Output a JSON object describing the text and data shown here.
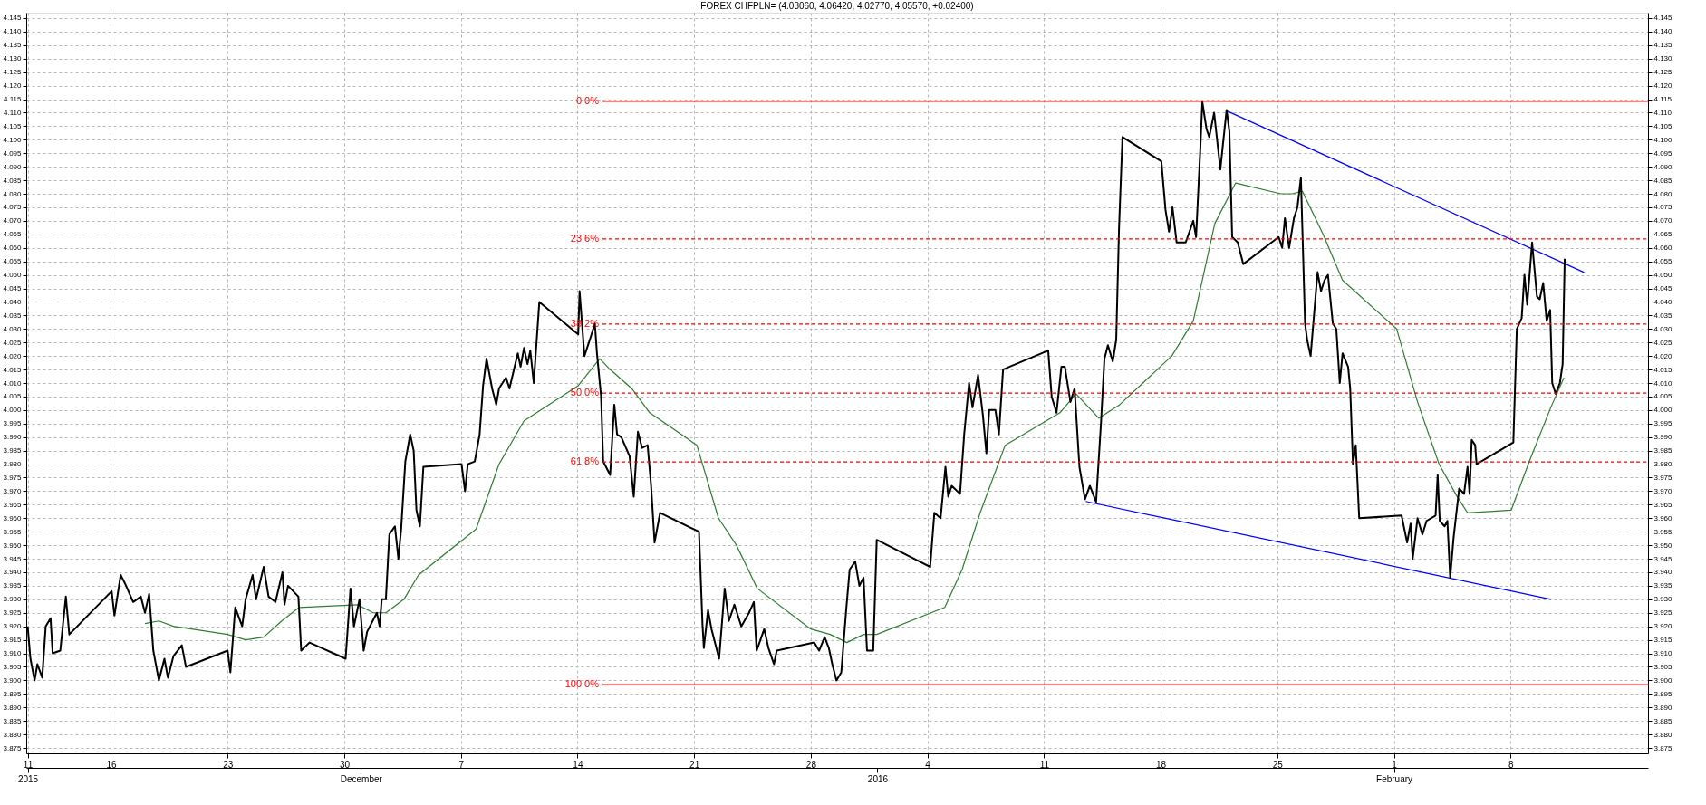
{
  "chart_data": {
    "type": "line",
    "title": "FOREX CHFPLN= (4.03060, 4.06420, 4.02770, 4.05570, +0.02400)",
    "xlim": [
      "2015-11-10T22:00",
      "2016-02-16T06:00"
    ],
    "xticks": [
      {
        "value": "2015-11-11",
        "label": "11"
      },
      {
        "value": "2015-11-16",
        "label": "16"
      },
      {
        "value": "2015-11-23",
        "label": "23"
      },
      {
        "value": "2015-11-30",
        "label": "30"
      },
      {
        "value": "2015-12-07",
        "label": "7"
      },
      {
        "value": "2015-12-14",
        "label": "14"
      },
      {
        "value": "2015-12-21",
        "label": "21"
      },
      {
        "value": "2015-12-28",
        "label": "28"
      },
      {
        "value": "2016-01-04",
        "label": "4"
      },
      {
        "value": "2016-01-11",
        "label": "11"
      },
      {
        "value": "2016-01-18",
        "label": "18"
      },
      {
        "value": "2016-01-25",
        "label": "25"
      },
      {
        "value": "2016-02-01",
        "label": "1"
      },
      {
        "value": "2016-02-08",
        "label": "8"
      }
    ],
    "x2lim": [
      "2015-11-10T22:00",
      "2016-02-16T06:00"
    ],
    "x2ticks": [
      {
        "value": "2015-11-11",
        "label": "2015"
      },
      {
        "value": "2015-12-01",
        "label": "December"
      },
      {
        "value": "2016-01-01",
        "label": "2016"
      },
      {
        "value": "2016-02-01",
        "label": "February"
      }
    ],
    "ylim": [
      3.873,
      4.147
    ],
    "yticks": [
      3.875,
      {
        "value": 3.88,
        "label": "3.880"
      },
      3.885,
      {
        "value": 3.89,
        "label": "3.890"
      },
      3.895,
      {
        "value": 3.9,
        "label": "3.900"
      },
      3.905,
      {
        "value": 3.91,
        "label": "3.910"
      },
      3.915,
      {
        "value": 3.92,
        "label": "3.920"
      },
      3.925,
      {
        "value": 3.93,
        "label": "3.930"
      },
      3.935,
      {
        "value": 3.94,
        "label": "3.940"
      },
      3.945,
      {
        "value": 3.95,
        "label": "3.950"
      },
      3.955,
      {
        "value": 3.96,
        "label": "3.960"
      },
      3.965,
      {
        "value": 3.97,
        "label": "3.970"
      },
      3.975,
      {
        "value": 3.98,
        "label": "3.980"
      },
      3.985,
      {
        "value": 3.99,
        "label": "3.990"
      },
      3.995,
      {
        "value": 4.0,
        "label": "4.000"
      },
      4.005,
      {
        "value": 4.01,
        "label": "4.010"
      },
      4.015,
      {
        "value": 4.02,
        "label": "4.020"
      },
      4.025,
      {
        "value": 4.03,
        "label": "4.030"
      },
      4.035,
      {
        "value": 4.04,
        "label": "4.040"
      },
      4.045,
      {
        "value": 4.05,
        "label": "4.050"
      },
      4.055,
      {
        "value": 4.06,
        "label": "4.060"
      },
      4.065,
      {
        "value": 4.07,
        "label": "4.070"
      },
      4.075,
      {
        "value": 4.08,
        "label": "4.080"
      },
      4.085,
      {
        "value": 4.09,
        "label": "4.090"
      },
      4.095,
      {
        "value": 4.1,
        "label": "4.100"
      },
      4.105,
      {
        "value": 4.11,
        "label": "4.110"
      },
      4.115,
      {
        "value": 4.12,
        "label": "4.120"
      },
      4.125,
      {
        "value": 4.13,
        "label": "4.130"
      },
      4.135,
      {
        "value": 4.14,
        "label": "4.140"
      },
      4.145
    ],
    "y2lim": [
      3.873,
      4.147
    ],
    "y2ticks": [
      3.875,
      {
        "value": 3.88,
        "label": "3.880"
      },
      3.885,
      {
        "value": 3.89,
        "label": "3.890"
      },
      3.895,
      {
        "value": 3.9,
        "label": "3.900"
      },
      3.905,
      {
        "value": 3.91,
        "label": "3.910"
      },
      3.915,
      {
        "value": 3.92,
        "label": "3.920"
      },
      3.925,
      {
        "value": 3.93,
        "label": "3.930"
      },
      3.935,
      {
        "value": 3.94,
        "label": "3.940"
      },
      3.945,
      {
        "value": 3.95,
        "label": "3.950"
      },
      3.955,
      {
        "value": 3.96,
        "label": "3.960"
      },
      3.965,
      {
        "value": 3.97,
        "label": "3.970"
      },
      3.975,
      {
        "value": 3.98,
        "label": "3.980"
      },
      3.985,
      {
        "value": 3.99,
        "label": "3.990"
      },
      3.995,
      {
        "value": 4.0,
        "label": "4.000"
      },
      4.005,
      {
        "value": 4.01,
        "label": "4.010"
      },
      4.015,
      {
        "value": 4.02,
        "label": "4.020"
      },
      4.025,
      {
        "value": 4.03,
        "label": "4.030"
      },
      4.035,
      {
        "value": 4.04,
        "label": "4.040"
      },
      4.045,
      {
        "value": 4.05,
        "label": "4.050"
      },
      4.055,
      {
        "value": 4.06,
        "label": "4.060"
      },
      4.065,
      {
        "value": 4.07,
        "label": "4.070"
      },
      4.075,
      {
        "value": 4.08,
        "label": "4.080"
      },
      4.085,
      {
        "value": 4.09,
        "label": "4.090"
      },
      4.095,
      {
        "value": 4.1,
        "label": "4.100"
      },
      4.105,
      {
        "value": 4.11,
        "label": "4.110"
      },
      4.115,
      {
        "value": 4.12,
        "label": "4.120"
      },
      4.125,
      {
        "value": 4.13,
        "label": "4.130"
      },
      4.135,
      {
        "value": 4.14,
        "label": "4.140"
      },
      4.145
    ],
    "grid": true,
    "series": [
      {
        "name": "0.0%",
        "color": "#ff0000",
        "axis": "y2",
        "line_style": "solid",
        "x": [
          "2015-12-15T12:00",
          "2016-02-16T06:00"
        ],
        "values": [
          4.1142,
          4.1142
        ]
      },
      {
        "name": "23.6%",
        "color": "#ff0000",
        "axis": "y2",
        "line_style": "dashed",
        "x": [
          "2015-12-15T12:00",
          "2016-02-16T06:00"
        ],
        "values": [
          4.0633,
          4.0633
        ]
      },
      {
        "name": "38.2%",
        "color": "#ff0000",
        "axis": "y2",
        "line_style": "dashed",
        "x": [
          "2015-12-15T12:00",
          "2016-02-16T06:00"
        ],
        "values": [
          4.0318,
          4.0318
        ]
      },
      {
        "name": "50.0%",
        "color": "#ff0000",
        "axis": "y2",
        "line_style": "dashed",
        "x": [
          "2015-12-15T12:00",
          "2016-02-16T06:00"
        ],
        "values": [
          4.0063,
          4.0063
        ]
      },
      {
        "name": "61.8%",
        "color": "#ff0000",
        "axis": "y2",
        "line_style": "dashed",
        "x": [
          "2015-12-15T12:00",
          "2016-02-16T06:00"
        ],
        "values": [
          3.9808,
          3.9808
        ]
      },
      {
        "name": "100.0%",
        "color": "#ff0000",
        "axis": "y2",
        "line_style": "solid",
        "x": [
          "2015-12-15T12:00",
          "2016-02-16T06:00"
        ],
        "values": [
          3.8984,
          3.8984
        ]
      },
      {
        "color": "#2e7d32",
        "x": [
          "2015-11-18T01:00",
          "2015-11-18T21:00",
          "2015-11-19T18:00",
          "2015-11-23T00:00",
          "2015-11-24T02:00",
          "2015-11-25T04:00",
          "2015-11-26T06:00",
          "2015-11-27T07:00",
          "2015-11-30T19:00",
          "2015-12-01T18:00",
          "2015-12-02T12:00",
          "2015-12-03T14:00",
          "2015-12-04T11:00",
          "2015-12-07T22:00",
          "2015-12-09T07:00",
          "2015-12-10T19:00",
          "2015-12-14T01:00",
          "2015-12-15T08:00",
          "2015-12-15T23:00",
          "2015-12-17T06:00",
          "2015-12-18T08:00",
          "2015-12-21T04:00",
          "2015-12-22T11:00",
          "2015-12-23T13:00",
          "2015-12-24T19:00",
          "2015-12-28T00:00",
          "2015-12-29T04:00",
          "2015-12-30T04:00",
          "2015-12-31T04:00",
          "2015-12-31T23:00",
          "2016-01-05T01:00",
          "2016-01-06T02:00",
          "2016-01-07T04:00",
          "2016-01-08T16:00",
          "2016-01-11T23:00",
          "2016-01-12T22:00",
          "2016-01-14T07:00",
          "2016-01-15T13:00",
          "2016-01-18T16:00",
          "2016-01-19T23:00",
          "2016-01-21T06:00",
          "2016-01-22T12:00",
          "2016-01-25T05:00",
          "2016-01-25T22:00",
          "2016-01-26T12:00",
          "2016-01-27T18:00",
          "2016-01-28T22:00",
          "2016-02-01T04:00",
          "2016-02-02T10:00",
          "2016-02-03T17:00",
          "2016-02-04T19:00",
          "2016-02-05T10:00",
          "2016-02-08T01:00",
          "2016-02-09T03:00",
          "2016-02-10T10:00",
          "2016-02-11T05:00"
        ],
        "values": [
          3.921,
          3.922,
          3.92,
          3.917,
          3.915,
          3.916,
          3.922,
          3.927,
          3.928,
          3.925,
          3.925,
          3.93,
          3.939,
          3.956,
          3.98,
          3.996,
          4.009,
          4.019,
          4.015,
          4.008,
          3.999,
          3.987,
          3.96,
          3.95,
          3.934,
          3.919,
          3.917,
          3.914,
          3.917,
          3.917,
          3.927,
          3.941,
          3.962,
          3.987,
          3.999,
          4.006,
          3.997,
          4.002,
          4.02,
          4.033,
          4.069,
          4.084,
          4.08,
          4.08,
          4.081,
          4.065,
          4.048,
          4.03,
          4.003,
          3.98,
          3.968,
          3.962,
          3.963,
          3.981,
          4.001,
          4.012
        ]
      },
      {
        "color": "#0000ff",
        "x": [
          "2016-01-21T23:00",
          "2016-02-12T10:00"
        ],
        "values": [
          4.1107,
          4.0509
        ]
      },
      {
        "color": "#0000ff",
        "x": [
          "2016-01-13T12:00",
          "2016-02-10T10:00"
        ],
        "values": [
          3.9662,
          3.93
        ]
      },
      {
        "color": "#000000",
        "x": [
          "2015-11-11T00:00",
          "2015-11-11T04:00",
          "2015-11-11T10:00",
          "2015-11-11T14:00",
          "2015-11-11T21:00",
          "2015-11-12T02:00",
          "2015-11-12T09:00",
          "2015-11-12T12:00",
          "2015-11-12T23:00",
          "2015-11-13T07:00",
          "2015-11-13T12:00",
          "2015-11-16T01:00",
          "2015-11-16T05:00",
          "2015-11-16T14:00",
          "2015-11-16T20:00",
          "2015-11-17T08:00",
          "2015-11-17T19:00",
          "2015-11-18T01:00",
          "2015-11-18T07:00",
          "2015-11-18T13:00",
          "2015-11-18T21:00",
          "2015-11-19T05:00",
          "2015-11-19T10:00",
          "2015-11-19T18:00",
          "2015-11-20T06:00",
          "2015-11-20T12:00",
          "2015-11-23T00:00",
          "2015-11-23T04:00",
          "2015-11-23T11:00",
          "2015-11-23T21:00",
          "2015-11-24T02:00",
          "2015-11-24T12:00",
          "2015-11-24T17:00",
          "2015-11-25T04:00",
          "2015-11-25T11:00",
          "2015-11-25T21:00",
          "2015-11-26T07:00",
          "2015-11-26T10:00",
          "2015-11-26T15:00",
          "2015-11-27T06:00",
          "2015-11-27T10:00",
          "2015-11-27T22:00",
          "2015-11-30T02:00",
          "2015-11-30T09:00",
          "2015-11-30T14:00",
          "2015-11-30T22:00",
          "2015-12-01T04:00",
          "2015-12-01T09:00",
          "2015-12-01T23:00",
          "2015-12-02T03:00",
          "2015-12-02T06:00",
          "2015-12-02T12:00",
          "2015-12-02T17:00",
          "2015-12-03T01:00",
          "2015-12-03T06:00",
          "2015-12-03T10:00",
          "2015-12-03T16:00",
          "2015-12-03T23:00",
          "2015-12-04T04:00",
          "2015-12-04T08:00",
          "2015-12-04T13:00",
          "2015-12-04T18:00",
          "2015-12-07T01:00",
          "2015-12-07T06:00",
          "2015-12-07T10:00",
          "2015-12-07T20:00",
          "2015-12-08T03:00",
          "2015-12-08T08:00",
          "2015-12-08T13:00",
          "2015-12-08T21:00",
          "2015-12-09T03:00",
          "2015-12-09T07:00",
          "2015-12-09T17:00",
          "2015-12-09T22:00",
          "2015-12-10T10:00",
          "2015-12-10T14:00",
          "2015-12-10T19:00",
          "2015-12-11T00:00",
          "2015-12-11T04:00",
          "2015-12-11T09:00",
          "2015-12-11T17:00",
          "2015-12-14T01:00",
          "2015-12-14T03:00",
          "2015-12-14T10:00",
          "2015-12-14T19:00",
          "2015-12-15T01:00",
          "2015-12-15T04:00",
          "2015-12-15T10:00",
          "2015-12-15T13:00",
          "2015-12-15T23:00",
          "2015-12-16T05:00",
          "2015-12-16T09:00",
          "2015-12-16T15:00",
          "2015-12-17T03:00",
          "2015-12-17T09:00",
          "2015-12-17T15:00",
          "2015-12-17T21:00",
          "2015-12-18T05:00",
          "2015-12-18T10:00",
          "2015-12-18T15:00",
          "2015-12-18T23:00",
          "2015-12-21T07:00",
          "2015-12-21T12:00",
          "2015-12-21T14:00",
          "2015-12-21T20:00",
          "2015-12-22T01:00",
          "2015-12-22T12:00",
          "2015-12-22T20:00",
          "2015-12-23T02:00",
          "2015-12-23T10:00",
          "2015-12-23T20:00",
          "2015-12-24T07:00",
          "2015-12-24T14:00",
          "2015-12-24T18:00",
          "2015-12-25T05:00",
          "2015-12-25T11:00",
          "2015-12-25T19:00",
          "2015-12-25T23:00",
          "2015-12-28T05:00",
          "2015-12-28T12:00",
          "2015-12-28T20:00",
          "2015-12-29T02:00",
          "2015-12-29T07:00",
          "2015-12-29T13:00",
          "2015-12-29T20:00",
          "2015-12-30T03:00",
          "2015-12-30T08:00",
          "2015-12-30T16:00",
          "2015-12-30T22:00",
          "2015-12-31T04:00",
          "2015-12-31T09:00",
          "2015-12-31T18:00",
          "2015-12-31T23:00",
          "2016-01-04T04:00",
          "2016-01-04T10:00",
          "2016-01-04T19:00",
          "2016-01-05T02:00",
          "2016-01-05T06:00",
          "2016-01-05T11:00",
          "2016-01-05T23:00",
          "2016-01-06T05:00",
          "2016-01-06T12:00",
          "2016-01-06T17:00",
          "2016-01-07T01:00",
          "2016-01-07T08:00",
          "2016-01-07T13:00",
          "2016-01-07T17:00",
          "2016-01-08T02:00",
          "2016-01-08T07:00",
          "2016-01-08T13:00",
          "2016-01-08T22:00",
          "2016-01-11T06:00",
          "2016-01-11T11:00",
          "2016-01-11T18:00",
          "2016-01-12T01:00",
          "2016-01-12T06:00",
          "2016-01-12T14:00",
          "2016-01-12T20:00",
          "2016-01-13T03:00",
          "2016-01-13T11:00",
          "2016-01-13T18:00",
          "2016-01-14T03:00",
          "2016-01-14T10:00",
          "2016-01-14T15:00",
          "2016-01-14T20:00",
          "2016-01-15T03:00",
          "2016-01-15T08:00",
          "2016-01-15T12:00",
          "2016-01-15T17:00",
          "2016-01-18T01:00",
          "2016-01-18T07:00",
          "2016-01-18T12:00",
          "2016-01-18T17:00",
          "2016-01-18T23:00",
          "2016-01-19T12:00",
          "2016-01-19T23:00",
          "2016-01-20T03:00",
          "2016-01-20T09:00",
          "2016-01-20T12:00",
          "2016-01-20T18:00",
          "2016-01-20T22:00",
          "2016-01-21T05:00",
          "2016-01-21T14:00",
          "2016-01-21T18:00",
          "2016-01-21T23:00",
          "2016-01-22T03:00",
          "2016-01-22T07:00",
          "2016-01-22T15:00",
          "2016-01-22T23:00",
          "2016-01-25T02:00",
          "2016-01-25T07:00",
          "2016-01-25T11:00",
          "2016-01-25T17:00",
          "2016-01-26T00:00",
          "2016-01-26T05:00",
          "2016-01-26T10:00",
          "2016-01-26T16:00",
          "2016-01-26T19:00",
          "2016-01-27T00:00",
          "2016-01-27T10:00",
          "2016-01-27T15:00",
          "2016-01-27T20:00",
          "2016-01-28T01:00",
          "2016-01-28T08:00",
          "2016-01-28T13:00",
          "2016-01-28T18:00",
          "2016-01-28T22:00",
          "2016-01-29T06:00",
          "2016-01-29T09:00",
          "2016-01-29T13:00",
          "2016-01-29T17:00",
          "2016-01-29T22:00",
          "2016-02-01T11:00",
          "2016-02-01T19:00",
          "2016-02-02T00:00",
          "2016-02-02T03:00",
          "2016-02-02T10:00",
          "2016-02-02T17:00",
          "2016-02-02T23:00",
          "2016-02-03T12:00",
          "2016-02-03T15:00",
          "2016-02-03T18:00",
          "2016-02-04T01:00",
          "2016-02-04T05:00",
          "2016-02-04T09:00",
          "2016-02-04T14:00",
          "2016-02-04T22:00",
          "2016-02-05T05:00",
          "2016-02-05T10:00",
          "2016-02-05T13:00",
          "2016-02-05T16:00",
          "2016-02-05T21:00",
          "2016-02-05T23:00",
          "2016-02-08T04:00",
          "2016-02-08T09:00",
          "2016-02-08T16:00",
          "2016-02-08T20:00",
          "2016-02-09T00:00",
          "2016-02-09T07:00",
          "2016-02-09T14:00",
          "2016-02-09T18:00",
          "2016-02-09T23:00",
          "2016-02-10T04:00",
          "2016-02-10T09:00",
          "2016-02-10T12:00",
          "2016-02-10T17:00",
          "2016-02-10T23:00",
          "2016-02-11T03:00",
          "2016-02-11T06:00"
        ],
        "values": [
          3.92,
          3.908,
          3.9,
          3.906,
          3.901,
          3.92,
          3.923,
          3.91,
          3.911,
          3.931,
          3.917,
          3.933,
          3.924,
          3.939,
          3.936,
          3.929,
          3.931,
          3.925,
          3.932,
          3.911,
          3.9,
          3.908,
          3.901,
          3.909,
          3.913,
          3.905,
          3.911,
          3.903,
          3.927,
          3.92,
          3.93,
          3.939,
          3.93,
          3.942,
          3.931,
          3.929,
          3.94,
          3.928,
          3.935,
          3.931,
          3.911,
          3.914,
          3.908,
          3.934,
          3.92,
          3.93,
          3.911,
          3.918,
          3.925,
          3.92,
          3.93,
          3.93,
          3.954,
          3.957,
          3.945,
          3.956,
          3.981,
          3.991,
          3.985,
          3.963,
          3.957,
          3.979,
          3.98,
          3.97,
          3.98,
          3.981,
          3.991,
          4.009,
          4.019,
          4.008,
          4.002,
          4.008,
          4.012,
          4.008,
          4.021,
          4.016,
          4.023,
          4.017,
          4.022,
          4.01,
          4.04,
          4.028,
          4.044,
          4.02,
          4.027,
          4.032,
          4.021,
          4.005,
          3.981,
          3.976,
          4.002,
          3.991,
          3.99,
          3.983,
          3.968,
          3.992,
          3.986,
          3.987,
          3.972,
          3.951,
          3.962,
          3.955,
          3.921,
          3.912,
          3.926,
          3.919,
          3.908,
          3.934,
          3.922,
          3.928,
          3.92,
          3.925,
          3.929,
          3.911,
          3.919,
          3.912,
          3.906,
          3.911,
          3.914,
          3.911,
          3.916,
          3.912,
          3.906,
          3.9,
          3.903,
          3.926,
          3.941,
          3.944,
          3.935,
          3.938,
          3.911,
          3.911,
          3.952,
          3.942,
          3.962,
          3.96,
          3.979,
          3.968,
          3.972,
          3.969,
          3.991,
          4.01,
          4.001,
          4.013,
          3.998,
          3.984,
          4.0,
          4.0,
          3.991,
          4.015,
          4.016,
          4.022,
          4.005,
          3.999,
          4.016,
          4.016,
          4.003,
          4.008,
          3.979,
          3.967,
          3.972,
          3.966,
          3.995,
          4.019,
          4.024,
          4.018,
          4.026,
          4.067,
          4.101,
          4.092,
          4.074,
          4.066,
          4.075,
          4.062,
          4.062,
          4.07,
          4.064,
          4.096,
          4.114,
          4.104,
          4.101,
          4.11,
          4.089,
          4.099,
          4.111,
          4.103,
          4.064,
          4.062,
          4.054,
          4.064,
          4.06,
          4.071,
          4.06,
          4.071,
          4.075,
          4.086,
          4.032,
          4.026,
          4.02,
          4.051,
          4.044,
          4.048,
          4.05,
          4.032,
          4.03,
          4.01,
          4.021,
          4.016,
          4.008,
          3.98,
          3.987,
          3.96,
          3.961,
          3.951,
          3.958,
          3.945,
          3.96,
          3.954,
          3.959,
          3.961,
          3.976,
          3.959,
          3.957,
          3.959,
          3.938,
          3.953,
          3.971,
          3.969,
          3.979,
          3.969,
          3.989,
          3.987,
          3.98,
          3.988,
          4.03,
          4.034,
          4.05,
          4.039,
          4.062,
          4.042,
          4.041,
          4.047,
          4.033,
          4.037,
          4.01,
          4.006,
          4.01,
          4.017,
          4.056
        ]
      }
    ]
  }
}
